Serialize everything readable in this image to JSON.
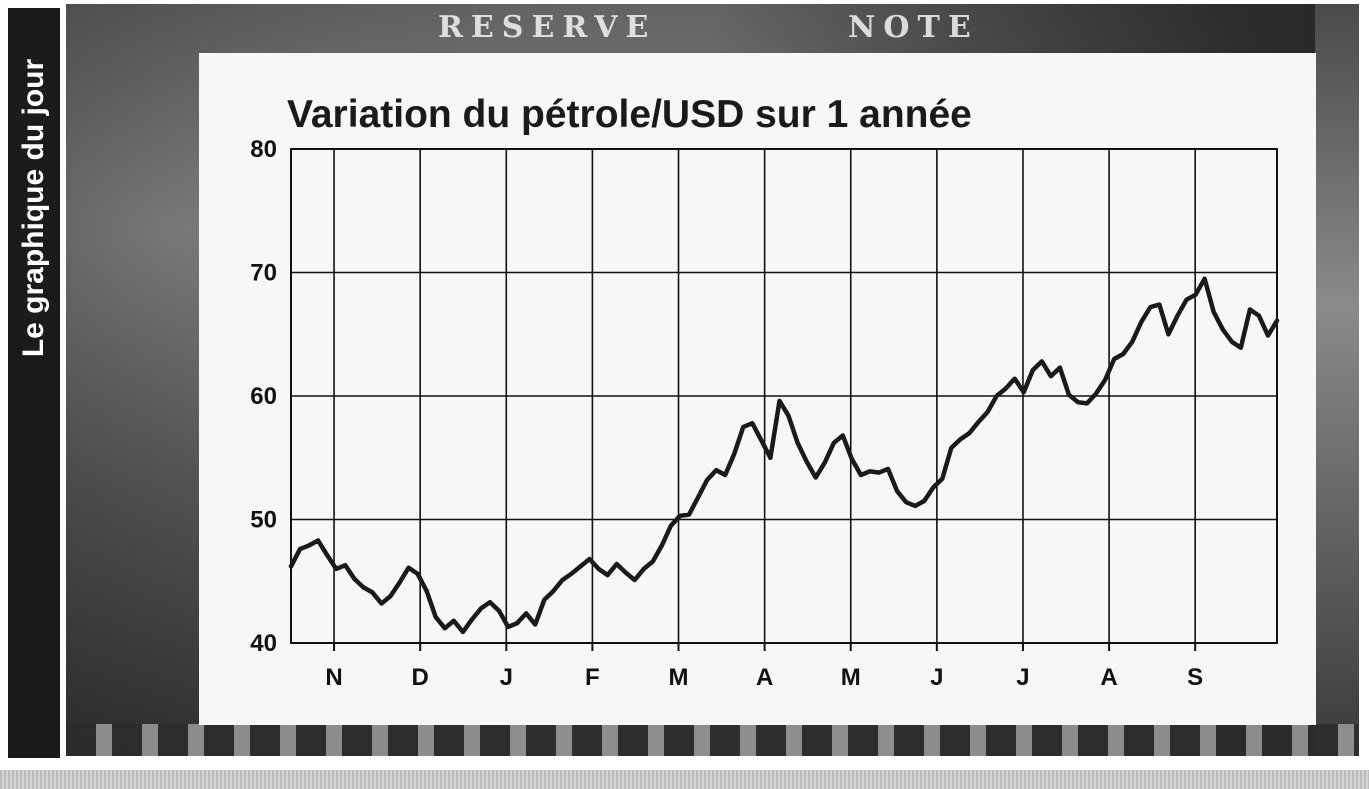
{
  "banner": {
    "label": "Le graphique du jour"
  },
  "chart_data": {
    "type": "line",
    "title": "Variation du pétrole/USD sur 1 année",
    "xlabel": "",
    "ylabel": "",
    "ylim": [
      40,
      80
    ],
    "yticks": [
      40,
      50,
      60,
      70,
      80
    ],
    "xticks": [
      "N",
      "D",
      "J",
      "F",
      "M",
      "A",
      "M",
      "J",
      "J",
      "A",
      "S"
    ],
    "grid": true,
    "legend": "none",
    "line_color": "#1a1a1a",
    "series": [
      {
        "values": [
          46.2,
          47.6,
          47.9,
          48.3,
          47.1,
          46.0,
          46.3,
          45.2,
          44.5,
          44.1,
          43.2,
          43.8,
          44.9,
          46.1,
          45.6,
          44.2,
          42.1,
          41.2,
          41.8,
          40.9,
          41.9,
          42.8,
          43.3,
          42.6,
          41.3,
          41.6,
          42.4,
          41.5,
          43.5,
          44.2,
          45.1,
          45.6,
          46.2,
          46.8,
          46.0,
          45.5,
          46.4,
          45.7,
          45.1,
          46.0,
          46.6,
          47.9,
          49.5,
          50.3,
          50.4,
          51.8,
          53.2,
          54.0,
          53.6,
          55.3,
          57.5,
          57.8,
          56.4,
          55.0,
          59.6,
          58.4,
          56.2,
          54.7,
          53.4,
          54.6,
          56.2,
          56.8,
          54.9,
          53.6,
          53.9,
          53.8,
          54.1,
          52.3,
          51.4,
          51.1,
          51.5,
          52.6,
          53.3,
          55.8,
          56.5,
          57.0,
          57.9,
          58.7,
          60.0,
          60.6,
          61.4,
          60.3,
          62.1,
          62.8,
          61.6,
          62.3,
          60.1,
          59.5,
          59.4,
          60.2,
          61.3,
          63.0,
          63.4,
          64.4,
          66.0,
          67.2,
          67.4,
          65.0,
          66.5,
          67.8,
          68.2,
          69.5,
          66.8,
          65.4,
          64.4,
          63.9,
          67.0,
          66.5,
          64.9,
          66.1
        ]
      }
    ]
  }
}
